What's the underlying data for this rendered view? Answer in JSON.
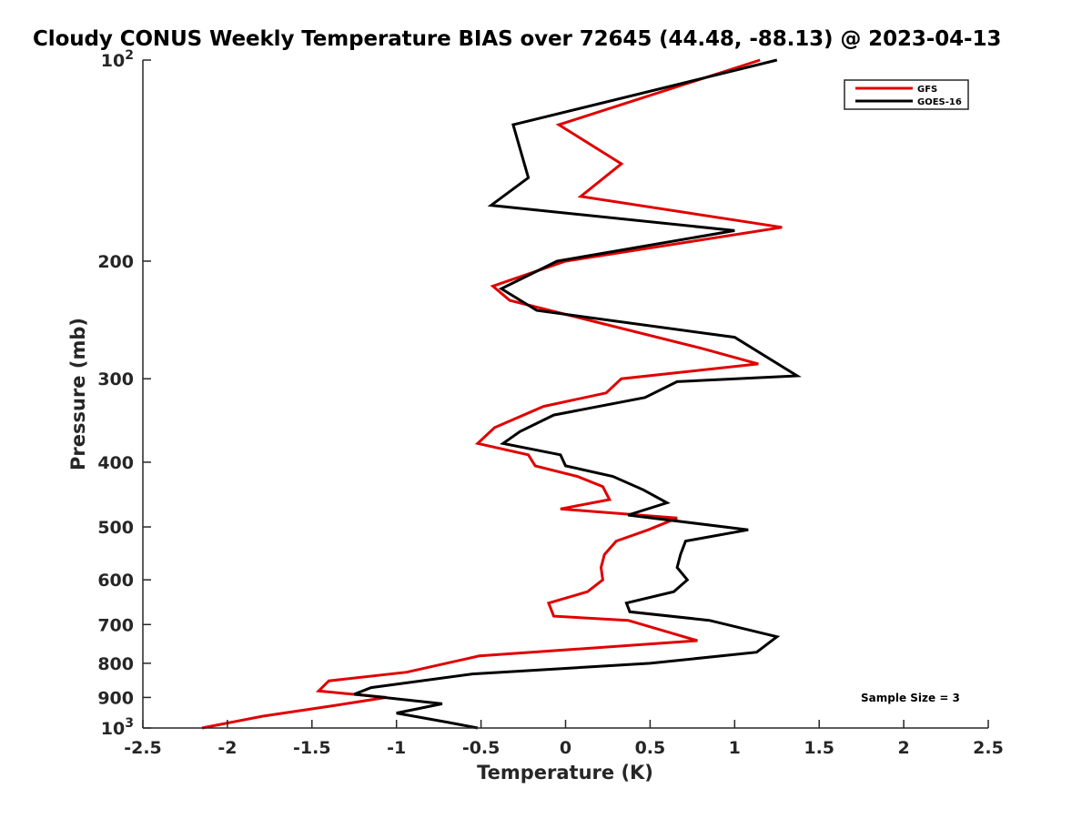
{
  "chart_data": {
    "type": "line",
    "title": "Cloudy CONUS Weekly Temperature BIAS over 72645 (44.48, -88.13) @ 2023-04-13",
    "xlabel": "Temperature (K)",
    "ylabel": "Pressure (mb)",
    "xlim": [
      -2.5,
      2.5
    ],
    "ylim": [
      100,
      1000
    ],
    "y_scale": "log",
    "y_reversed": true,
    "grid": false,
    "legend_position": "top-right",
    "x_ticks": [
      -2.5,
      -2,
      -1.5,
      -1,
      -0.5,
      0,
      0.5,
      1,
      1.5,
      2,
      2.5
    ],
    "x_tick_labels": [
      "-2.5",
      "-2",
      "-1.5",
      "-1",
      "-0.5",
      "0",
      "0.5",
      "1",
      "1.5",
      "2",
      "2.5"
    ],
    "y_ticks": [
      100,
      200,
      300,
      400,
      500,
      600,
      700,
      800,
      900,
      1000
    ],
    "y_tick_labels": [
      "10^2",
      "200",
      "300",
      "400",
      "500",
      "600",
      "700",
      "800",
      "900",
      "10^3"
    ],
    "annotation": "Sample Size = 3",
    "series": [
      {
        "name": "GFS",
        "color": "#e00000",
        "pressure": [
          100,
          125,
          143,
          160,
          178,
          200,
          218,
          229,
          270,
          285,
          300,
          315,
          330,
          355,
          375,
          390,
          405,
          420,
          435,
          455,
          470,
          485,
          505,
          525,
          550,
          575,
          600,
          625,
          650,
          680,
          690,
          740,
          780,
          825,
          850,
          880,
          900,
          925,
          960,
          1000
        ],
        "values": [
          1.15,
          -0.04,
          0.33,
          0.09,
          1.28,
          0.0,
          -0.43,
          -0.33,
          0.8,
          1.14,
          0.33,
          0.24,
          -0.13,
          -0.42,
          -0.52,
          -0.22,
          -0.18,
          0.07,
          0.22,
          0.26,
          -0.03,
          0.66,
          0.49,
          0.3,
          0.23,
          0.21,
          0.22,
          0.13,
          -0.1,
          -0.07,
          0.37,
          0.78,
          -0.51,
          -0.94,
          -1.4,
          -1.46,
          -1.06,
          -1.36,
          -1.79,
          -2.15
        ]
      },
      {
        "name": "GOES-16",
        "color": "#000000",
        "pressure": [
          100,
          125,
          150,
          165,
          180,
          200,
          220,
          237,
          260,
          297,
          303,
          320,
          340,
          360,
          375,
          390,
          405,
          420,
          440,
          460,
          480,
          505,
          525,
          550,
          575,
          600,
          625,
          650,
          670,
          690,
          730,
          770,
          800,
          830,
          870,
          890,
          920,
          950,
          980,
          1000
        ],
        "values": [
          1.25,
          -0.31,
          -0.22,
          -0.44,
          1.0,
          -0.05,
          -0.38,
          -0.17,
          1.0,
          1.37,
          0.66,
          0.47,
          -0.07,
          -0.27,
          -0.37,
          -0.03,
          0.0,
          0.28,
          0.46,
          0.6,
          0.37,
          1.08,
          0.71,
          0.68,
          0.66,
          0.72,
          0.64,
          0.36,
          0.38,
          0.85,
          1.25,
          1.13,
          0.5,
          -0.55,
          -1.15,
          -1.25,
          -0.73,
          -1.0,
          -0.7,
          -0.52
        ]
      }
    ]
  }
}
